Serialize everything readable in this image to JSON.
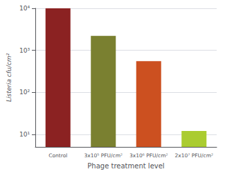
{
  "chart_data": {
    "type": "bar",
    "categories": [
      "Control",
      "3x10⁵ PFU/cm²",
      "3x10⁶ PFU/cm²",
      "2x10⁷ PFU/cm²"
    ],
    "values": [
      10000,
      2200,
      550,
      12
    ],
    "colors": [
      "#8B2222",
      "#7A8030",
      "#CC5020",
      "#AACC30"
    ],
    "xlabel": "Phage treatment level",
    "ylabel": "Listeria cfu/cm²",
    "log": "y",
    "ylim": [
      5,
      10000
    ],
    "yticks": [
      {
        "value": 10,
        "label": "10¹"
      },
      {
        "value": 100,
        "label": "10²"
      },
      {
        "value": 1000,
        "label": "10³"
      },
      {
        "value": 10000,
        "label": "10⁴"
      }
    ],
    "grid": true
  }
}
